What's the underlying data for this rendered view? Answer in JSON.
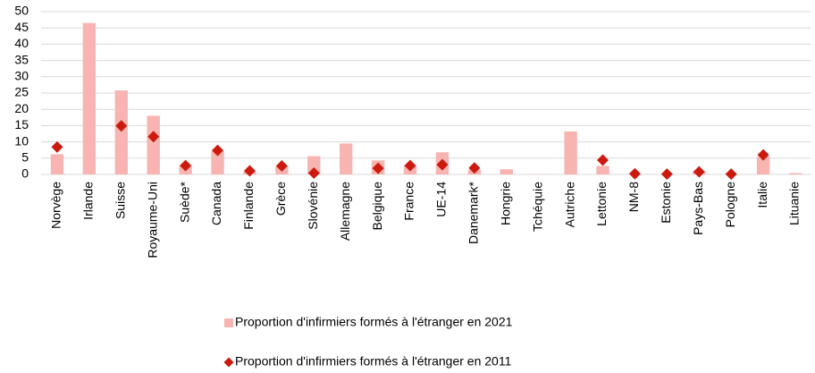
{
  "chart_data": {
    "type": "bar",
    "categories": [
      "Norvège",
      "Irlande",
      "Suisse",
      "Royaume-Uni",
      "Suède*",
      "Canada",
      "Finlande",
      "Grèce",
      "Slovénie",
      "Allemagne",
      "Belgique",
      "France",
      "UE-14",
      "Danemark*",
      "Hongrie",
      "Tchéquie",
      "Autriche",
      "Lettonie",
      "NM-8",
      "Estonie",
      "Pays-Bas",
      "Pologne",
      "Italie",
      "Lituanie"
    ],
    "series": [
      {
        "name": "Proportion d'infirmiers formés à l'étranger en 2021",
        "type": "bar",
        "color": "#f8b4b0",
        "values": [
          6.2,
          46.5,
          25.8,
          18,
          2.7,
          7.2,
          0.8,
          2.5,
          5.6,
          9.5,
          4.3,
          2.8,
          6.8,
          1.5,
          1.6,
          0.1,
          13.2,
          2.6,
          0.3,
          0.2,
          0.9,
          0.2,
          5.5,
          0.4
        ]
      },
      {
        "name": "Proportion d'infirmiers formés à l'étranger en 2011",
        "type": "scatter",
        "color": "#cc1a0f",
        "values": [
          8.4,
          null,
          14.9,
          11.6,
          2.7,
          7.4,
          1.1,
          2.6,
          0.4,
          null,
          1.9,
          2.7,
          3.0,
          2.0,
          null,
          null,
          null,
          4.4,
          0.2,
          0.1,
          0.8,
          0.1,
          6.0,
          null
        ]
      }
    ],
    "ylim": [
      0,
      50
    ],
    "yticks": [
      0,
      5,
      10,
      15,
      20,
      25,
      30,
      35,
      40,
      45,
      50
    ],
    "grid": true
  }
}
